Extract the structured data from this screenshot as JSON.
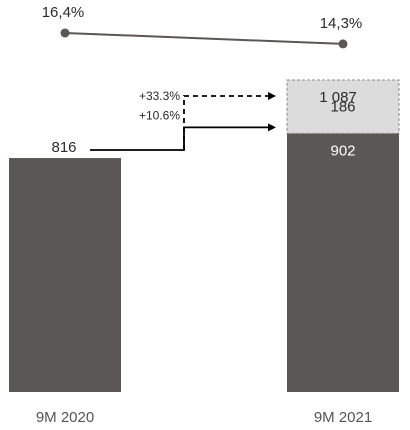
{
  "chart_data": {
    "type": "bar",
    "categories": [
      "9M 2020",
      "9M 2021"
    ],
    "series": [
      {
        "values": [
          816,
          902
        ]
      },
      {
        "values": [
          0,
          186
        ]
      }
    ],
    "bar_labels": [
      "816",
      "902",
      "186"
    ],
    "total_labels": [
      "",
      "1 087"
    ],
    "growth_annotations": [
      "+10.6%",
      "+33.3%"
    ],
    "line_series": {
      "values": [
        16.4,
        14.3
      ],
      "labels": [
        "16,4%",
        "14,3%"
      ]
    },
    "ylim": [
      0,
      1130
    ],
    "colors": {
      "bar": "#5b5755",
      "stacked": "#dcdcdc",
      "line": "#5b5755",
      "arrow": "#000000"
    }
  }
}
